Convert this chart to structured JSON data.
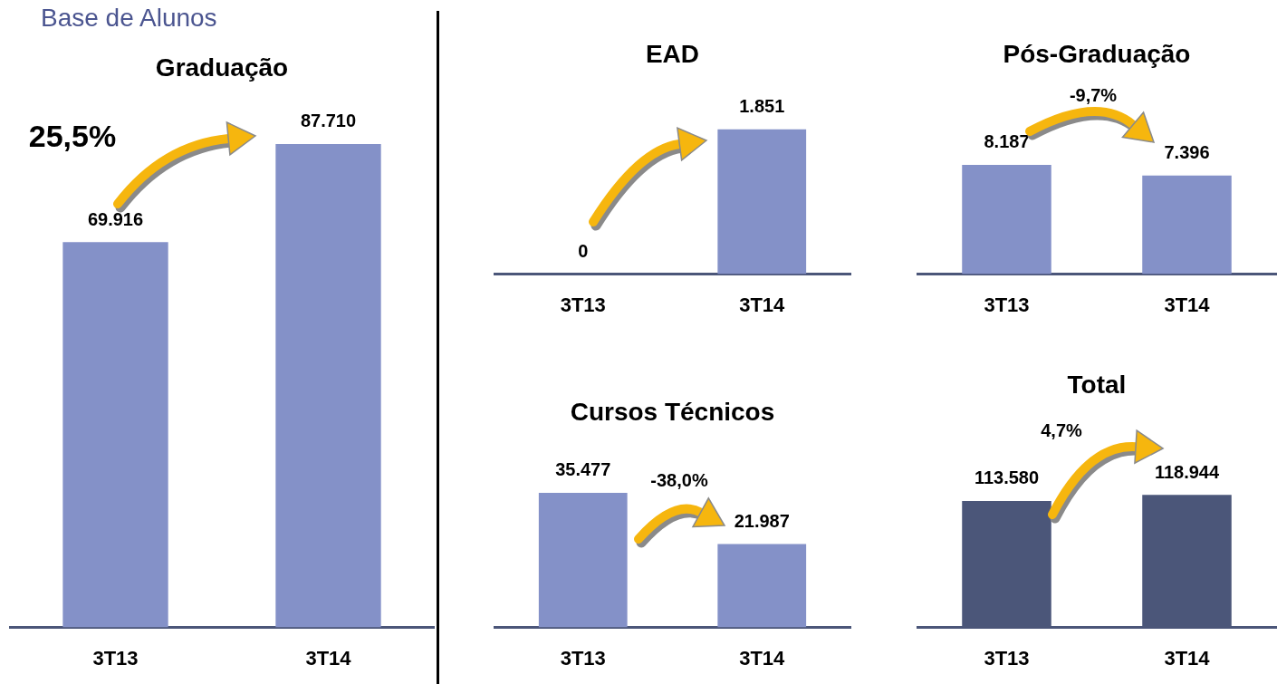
{
  "chart_data": [
    {
      "type": "bar",
      "title": "Base de Alunos",
      "subtitle": "Graduação",
      "categories": [
        "3T13",
        "3T14"
      ],
      "values": [
        69916,
        87710
      ],
      "value_labels": [
        "69.916",
        "87.710"
      ],
      "color": "#8491c8",
      "annotations": [
        "25,5%"
      ]
    },
    {
      "type": "bar",
      "title": "EAD",
      "categories": [
        "3T13",
        "3T14"
      ],
      "values": [
        0,
        1851
      ],
      "value_labels": [
        "0",
        "1.851"
      ],
      "color": "#8491c8"
    },
    {
      "type": "bar",
      "title": "Pós-Graduação",
      "categories": [
        "3T13",
        "3T14"
      ],
      "values": [
        8187,
        7396
      ],
      "value_labels": [
        "8.187",
        "7.396"
      ],
      "color": "#8491c8",
      "annotations": [
        "-9,7%"
      ]
    },
    {
      "type": "bar",
      "title": "Cursos Técnicos",
      "categories": [
        "3T13",
        "3T14"
      ],
      "values": [
        35477,
        21987
      ],
      "value_labels": [
        "35.477",
        "21.987"
      ],
      "color": "#8491c8",
      "annotations": [
        "-38,0%"
      ]
    },
    {
      "type": "bar",
      "title": "Total",
      "categories": [
        "3T13",
        "3T14"
      ],
      "values": [
        113580,
        118944
      ],
      "value_labels": [
        "113.580",
        "118.944"
      ],
      "color": "#4b5679",
      "annotations": [
        "4,7%"
      ]
    }
  ]
}
